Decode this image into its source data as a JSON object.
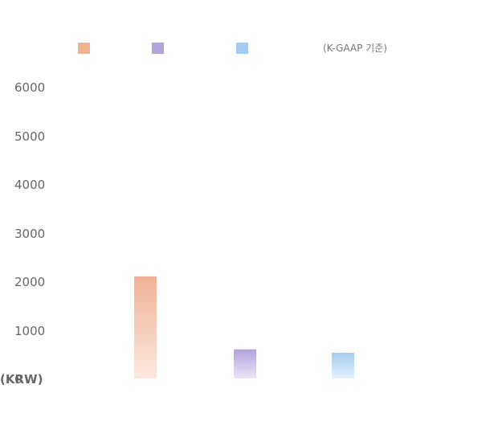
{
  "chart_data": {
    "type": "bar",
    "categories": [
      "",
      "",
      ""
    ],
    "values": [
      2100,
      600,
      530
    ],
    "ylim": [
      0,
      6000
    ],
    "yticks": [
      0,
      1000,
      2000,
      3000,
      4000,
      5000,
      6000
    ],
    "unit_label": "(KRW)",
    "note": "(K-GAAP 기준)",
    "grid": false,
    "legend_position": "top",
    "colors": [
      {
        "top": "#efb293",
        "bottom": "#fbe9e1"
      },
      {
        "top": "#b2a2de",
        "bottom": "#ebe5f7"
      },
      {
        "top": "#a3cdf0",
        "bottom": "#e5f1fc"
      }
    ]
  }
}
